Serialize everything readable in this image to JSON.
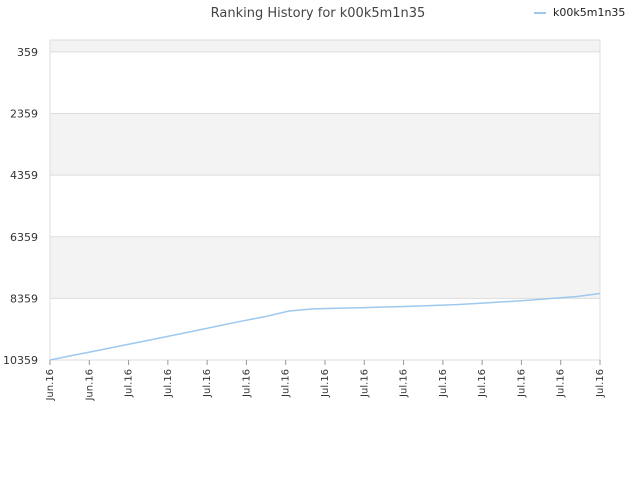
{
  "chart_data": {
    "type": "line",
    "title": "Ranking History for k00k5m1n35",
    "xlabel": "",
    "ylabel": "",
    "y_inverted": true,
    "ylim": [
      359,
      10359
    ],
    "y_ticks": [
      "359",
      "2359",
      "4359",
      "6359",
      "8359",
      "10359"
    ],
    "x_ticks": [
      "Jun.16",
      "Jun.16",
      "Jul.16",
      "Jul.16",
      "Jul.16",
      "Jul.16",
      "Jul.16",
      "Jul.16",
      "Jul.16",
      "Jul.16",
      "Jul.16",
      "Jul.16",
      "Jul.16",
      "Jul.16",
      "Jul.16"
    ],
    "grid": true,
    "legend": "top-right",
    "colors": {
      "series": "#9ec9ee",
      "band": "#f3f3f3",
      "grid": "#dddddd"
    },
    "series": [
      {
        "name": "k00k5m1n35",
        "ranks": [
          10359,
          10200,
          10050,
          9890,
          9740,
          9580,
          9420,
          9260,
          9100,
          8950,
          8770,
          8700,
          8680,
          8660,
          8640,
          8620,
          8590,
          8560,
          8520,
          8470,
          8420,
          8360,
          8300,
          8200
        ]
      }
    ]
  }
}
